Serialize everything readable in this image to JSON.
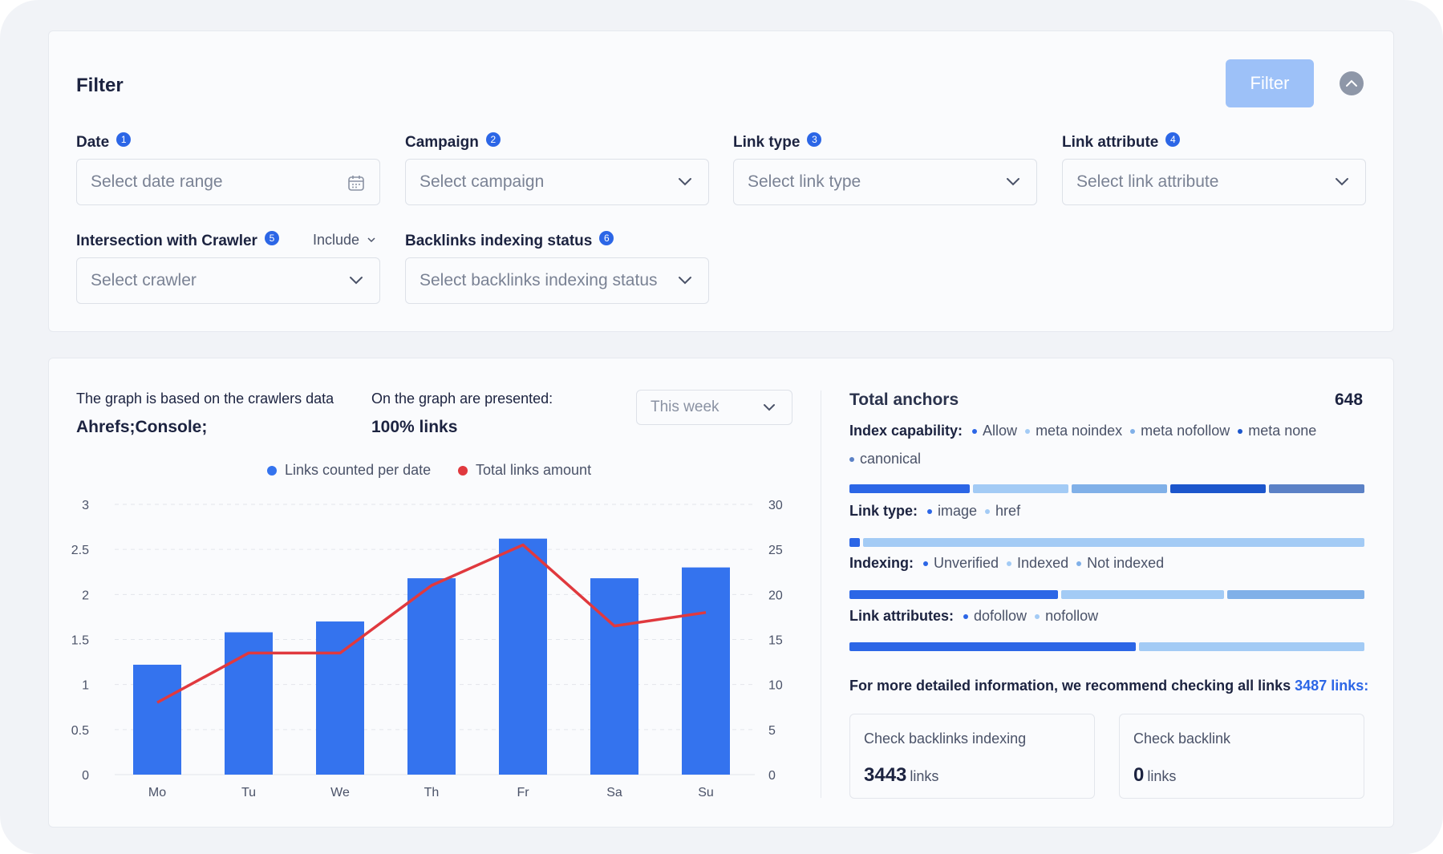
{
  "filter": {
    "title": "Filter",
    "button_label": "Filter",
    "fields": [
      {
        "label": "Date",
        "badge": "1",
        "placeholder": "Select date range"
      },
      {
        "label": "Campaign",
        "badge": "2",
        "placeholder": "Select campaign"
      },
      {
        "label": "Link type",
        "badge": "3",
        "placeholder": "Select link type"
      },
      {
        "label": "Link attribute",
        "badge": "4",
        "placeholder": "Select link attribute"
      },
      {
        "label": "Intersection with Crawler",
        "badge": "5",
        "placeholder": "Select crawler",
        "mode": "Include"
      },
      {
        "label": "Backlinks indexing status",
        "badge": "6",
        "placeholder": "Select backlinks indexing status"
      }
    ]
  },
  "graph_info": {
    "based_label": "The graph is based on the crawlers data",
    "based_value": "Ahrefs;Console;",
    "presented_label": "On the graph are presented:",
    "presented_value": "100% links",
    "period": "This week"
  },
  "colors": {
    "bar": "#3473ee",
    "line": "#e0393e",
    "accent": "#2c66e6"
  },
  "chart_data": {
    "type": "bar",
    "categories": [
      "Mo",
      "Tu",
      "We",
      "Th",
      "Fr",
      "Sa",
      "Su"
    ],
    "series": [
      {
        "name": "Links counted per date",
        "type": "bar",
        "axis": "left",
        "values": [
          1.22,
          1.58,
          1.7,
          2.18,
          2.62,
          2.18,
          2.3
        ]
      },
      {
        "name": "Total links amount",
        "type": "line",
        "axis": "right",
        "values": [
          8,
          13.5,
          13.5,
          21,
          25.5,
          16.5,
          18
        ]
      }
    ],
    "ylim_left": [
      0,
      3
    ],
    "yticks_left": [
      "0",
      "0.5",
      "1",
      "1.5",
      "2",
      "2.5",
      "3"
    ],
    "ylim_right": [
      0,
      30
    ],
    "yticks_right": [
      "0",
      "5",
      "10",
      "15",
      "20",
      "25",
      "30"
    ],
    "grid": true,
    "legend_position": "top"
  },
  "anchors": {
    "title": "Total anchors",
    "total": "648",
    "categories": [
      {
        "label": "Index capability:",
        "items": [
          {
            "name": "Allow",
            "color": "#2c66e6",
            "share": 24
          },
          {
            "name": "meta noindex",
            "color": "#a3cbf5",
            "share": 19
          },
          {
            "name": "meta nofollow",
            "color": "#80b0e8",
            "share": 19
          },
          {
            "name": "meta none",
            "color": "#1c56cc",
            "share": 19
          },
          {
            "name": "canonical",
            "color": "#5b81c6",
            "share": 19
          }
        ]
      },
      {
        "label": "Link type:",
        "items": [
          {
            "name": "image",
            "color": "#2c66e6",
            "share": 2
          },
          {
            "name": "href",
            "color": "#a3cbf5",
            "share": 98
          }
        ]
      },
      {
        "label": "Indexing:",
        "items": [
          {
            "name": "Unverified",
            "color": "#2c66e6",
            "share": 41
          },
          {
            "name": "Indexed",
            "color": "#a3cbf5",
            "share": 32
          },
          {
            "name": "Not indexed",
            "color": "#80b0e8",
            "share": 27
          }
        ]
      },
      {
        "label": "Link attributes:",
        "items": [
          {
            "name": "dofollow",
            "color": "#2c66e6",
            "share": 56
          },
          {
            "name": "nofollow",
            "color": "#a3cbf5",
            "share": 44
          }
        ]
      }
    ],
    "more_info_text": "For more detailed information, we recommend checking all links",
    "more_info_link": "3487 links:",
    "checks": [
      {
        "label": "Check backlinks indexing",
        "value": "3443",
        "unit": "links"
      },
      {
        "label": "Check backlink",
        "value": "0",
        "unit": "links"
      }
    ]
  }
}
